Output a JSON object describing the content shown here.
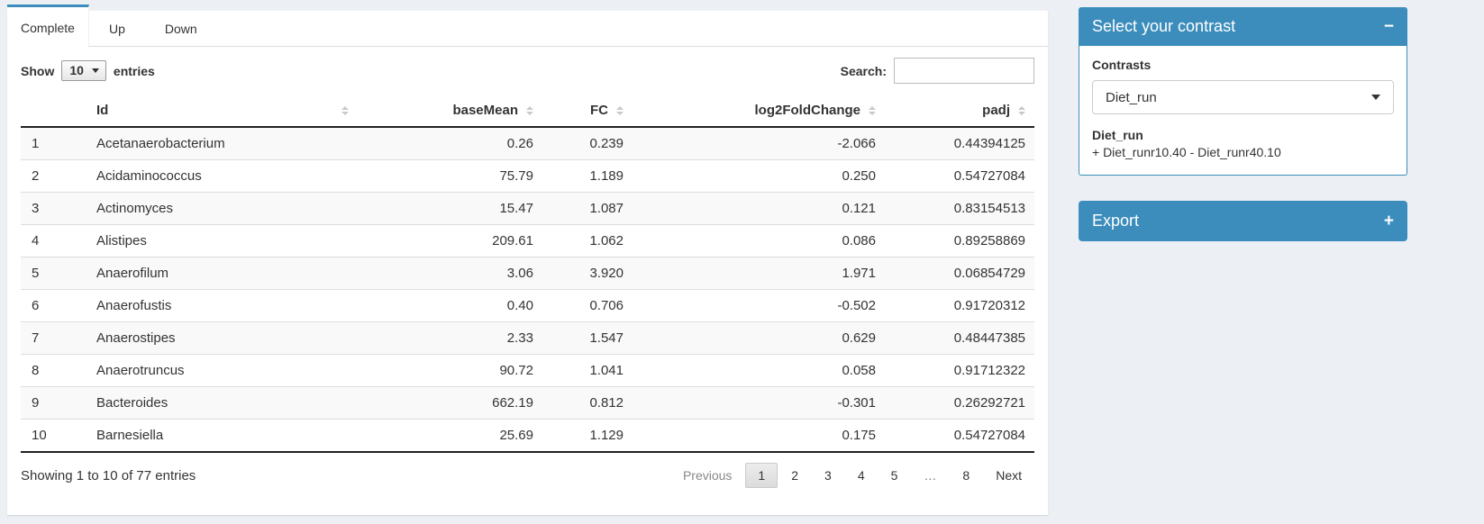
{
  "colors": {
    "primary": "#3c8dbc",
    "page_bg": "#ecf0f5"
  },
  "tabs": [
    {
      "label": "Complete",
      "active": true
    },
    {
      "label": "Up",
      "active": false
    },
    {
      "label": "Down",
      "active": false
    }
  ],
  "table_controls": {
    "show_label": "Show",
    "page_length": "10",
    "entries_label": "entries",
    "search_label": "Search:",
    "search_value": ""
  },
  "table": {
    "columns": [
      "",
      "Id",
      "baseMean",
      "FC",
      "log2FoldChange",
      "padj"
    ],
    "rows": [
      {
        "num": "1",
        "id": "Acetanaerobacterium",
        "baseMean": "0.26",
        "fc": "0.239",
        "log2fc": "-2.066",
        "padj": "0.44394125"
      },
      {
        "num": "2",
        "id": "Acidaminococcus",
        "baseMean": "75.79",
        "fc": "1.189",
        "log2fc": "0.250",
        "padj": "0.54727084"
      },
      {
        "num": "3",
        "id": "Actinomyces",
        "baseMean": "15.47",
        "fc": "1.087",
        "log2fc": "0.121",
        "padj": "0.83154513"
      },
      {
        "num": "4",
        "id": "Alistipes",
        "baseMean": "209.61",
        "fc": "1.062",
        "log2fc": "0.086",
        "padj": "0.89258869"
      },
      {
        "num": "5",
        "id": "Anaerofilum",
        "baseMean": "3.06",
        "fc": "3.920",
        "log2fc": "1.971",
        "padj": "0.06854729"
      },
      {
        "num": "6",
        "id": "Anaerofustis",
        "baseMean": "0.40",
        "fc": "0.706",
        "log2fc": "-0.502",
        "padj": "0.91720312"
      },
      {
        "num": "7",
        "id": "Anaerostipes",
        "baseMean": "2.33",
        "fc": "1.547",
        "log2fc": "0.629",
        "padj": "0.48447385"
      },
      {
        "num": "8",
        "id": "Anaerotruncus",
        "baseMean": "90.72",
        "fc": "1.041",
        "log2fc": "0.058",
        "padj": "0.91712322"
      },
      {
        "num": "9",
        "id": "Bacteroides",
        "baseMean": "662.19",
        "fc": "0.812",
        "log2fc": "-0.301",
        "padj": "0.26292721"
      },
      {
        "num": "10",
        "id": "Barnesiella",
        "baseMean": "25.69",
        "fc": "1.129",
        "log2fc": "0.175",
        "padj": "0.54727084"
      }
    ]
  },
  "footer": {
    "info": "Showing 1 to 10 of 77 entries",
    "pagination": {
      "previous_label": "Previous",
      "pages": [
        "1",
        "2",
        "3",
        "4",
        "5",
        "…",
        "8"
      ],
      "active_page": "1",
      "next_label": "Next"
    }
  },
  "contrast_panel": {
    "title": "Select your contrast",
    "collapse_icon": "−",
    "contrasts_label": "Contrasts",
    "selected_contrast": "Diet_run",
    "contrast_name": "Diet_run",
    "contrast_formula": "+ Diet_runr10.40 - Diet_runr40.10"
  },
  "export_panel": {
    "title": "Export",
    "expand_icon": "+"
  }
}
